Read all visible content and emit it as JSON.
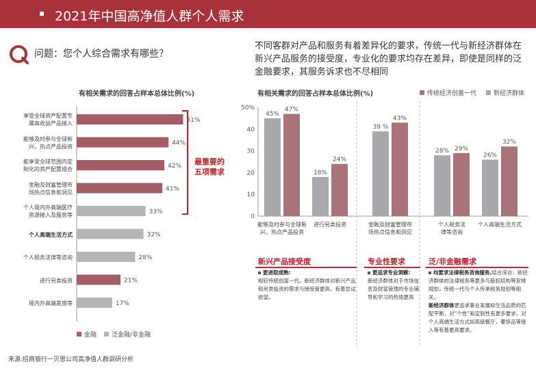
{
  "header": {
    "title": "2021年中国高净值人群个人需求"
  },
  "question": {
    "icon": "q-search-icon",
    "text": "问题：您个人综合需求有哪些？"
  },
  "description": "不同客群对产品和服务有着差异化的要求，传统一代与新经济群体在新兴产品服务的接受度，专业化的要求均存在差异，即使是同样的泛金融要求，其服务诉求也不尽相同",
  "colors": {
    "accent": "#a8323a",
    "finance": "#a35d66",
    "nonfinance": "#b5b5b8",
    "traditional": "#a87479",
    "neweco": "#a9a9ad"
  },
  "left_highlight": "最重要的\n五项需求",
  "groups": [
    {
      "title": "新兴产品接受度",
      "sub": "更进取成熟:",
      "text": "相较传统创富一代，新经济群体对新兴产品和另类投资的需求与接受度更高，有着尝试欲望。"
    },
    {
      "title": "专业性要求",
      "sub": "更追求专业洞察:",
      "text": "新经济群体对于市场信息及财富管理的专业辅导和学习的热情更高"
    },
    {
      "title": "泛/非金融需求",
      "sub": "均要求法律税务咨询服务,",
      "text1": "结合深访，新经济群体的法律税务等更多与股权结构等安排规划，传统一代与个人传承税务规划等相关。",
      "sub2": "新经济群体",
      "text2": "更追求事业发展和生活品质的匹配平衡，对“个性”和定制性有更多要求，对个人高端生活方式如高级餐厅，奢侈品等接入等有着更高要求。"
    }
  ],
  "source": "来源:招商银行一贝恩公司高净值人群调研分析",
  "chart_data": [
    {
      "type": "bar",
      "orientation": "horizontal",
      "title": "有相关需求的回答占样本总体比例(%)",
      "categories": [
        "享受全球资产配置专属高收益产品接入",
        "能够及时参与全球新兴、热点产品投资",
        "能享受全球范围内定制化的资产配置组合",
        "金融及财富管理市场热点信息和洞见",
        "个人境内外高端医疗资源接入及服务等",
        "个人高端生活方式",
        "个人税务法律等咨询",
        "进行另类投资",
        "境内外高端差旅等"
      ],
      "values": [
        51,
        44,
        42,
        41,
        33,
        32,
        28,
        21,
        17
      ],
      "value_labels": [
        "51%",
        "44%",
        "42%",
        "41%",
        "33%",
        "32%",
        "28%",
        "21%",
        "17%"
      ],
      "groups": [
        "金融",
        "金融",
        "金融",
        "金融",
        "泛金融/非金融",
        "泛金融/非金融",
        "泛金融/非金融",
        "金融",
        "泛金融/非金融"
      ],
      "legend": [
        "金融",
        "泛金融/非金融"
      ],
      "legend_position": "bottom",
      "xlim": [
        0,
        60
      ]
    },
    {
      "type": "bar",
      "title": "有相关需求的回答占样本总体比例(%)",
      "categories": [
        "能够及时参与全球新兴、热点产品投资",
        "进行另类投资",
        "金融及财富管理市场热点信息和洞见",
        "个人税务法律等咨询",
        "个人高端生活方式"
      ],
      "series": [
        {
          "name": "传统经济创富一代",
          "values": [
            45,
            18,
            39,
            28,
            26
          ]
        },
        {
          "name": "新经济群体",
          "values": [
            47,
            24,
            43,
            29,
            32
          ]
        }
      ],
      "value_labels": {
        "传统经济创富一代": [
          "45%",
          "18%",
          "39 %",
          "28%",
          "26%"
        ],
        "新经济群体": [
          "47%",
          "24%",
          "43%",
          "29%",
          "32%"
        ]
      },
      "yticks": [
        "50%",
        "40",
        "30",
        "20",
        "10",
        "0"
      ],
      "ylim": [
        0,
        50
      ],
      "legend_position": "top-right"
    }
  ]
}
